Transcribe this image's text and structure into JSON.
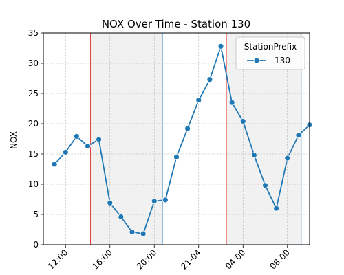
{
  "chart_data": {
    "type": "line",
    "title": "NOX  Over Time - Station 130",
    "xlabel": "",
    "ylabel": "NOX",
    "ylim": [
      0,
      35
    ],
    "xlim": [
      "2024-04-20 10:00",
      "2024-04-21 10:00"
    ],
    "y_ticks": [
      0,
      5,
      10,
      15,
      20,
      25,
      30,
      35
    ],
    "x_ticks": [
      {
        "t": "2024-04-20 12:00",
        "label": "12:00"
      },
      {
        "t": "2024-04-20 16:00",
        "label": "16:00"
      },
      {
        "t": "2024-04-20 20:00",
        "label": "20:00"
      },
      {
        "t": "2024-04-21 00:00",
        "label": "21-04"
      },
      {
        "t": "2024-04-21 04:00",
        "label": "04:00"
      },
      {
        "t": "2024-04-21 08:00",
        "label": "08:00"
      }
    ],
    "grid": true,
    "legend": {
      "title": "StationPrefix",
      "placement": "top-right"
    },
    "shaded_regions": [
      {
        "start": "2024-04-20 14:15",
        "end": "2024-04-20 20:45",
        "color": "#e5e5e5"
      },
      {
        "start": "2024-04-21 02:30",
        "end": "2024-04-21 09:15",
        "color": "#e5e5e5"
      }
    ],
    "series": [
      {
        "name": "130",
        "color": "#1f77b4",
        "points": [
          {
            "x": "2024-04-20 11:00",
            "y": 13.3
          },
          {
            "x": "2024-04-20 12:00",
            "y": 15.3
          },
          {
            "x": "2024-04-20 13:00",
            "y": 17.9
          },
          {
            "x": "2024-04-20 14:00",
            "y": 16.3
          },
          {
            "x": "2024-04-20 15:00",
            "y": 17.4
          },
          {
            "x": "2024-04-20 16:00",
            "y": 6.9
          },
          {
            "x": "2024-04-20 17:00",
            "y": 4.6
          },
          {
            "x": "2024-04-20 18:00",
            "y": 2.1
          },
          {
            "x": "2024-04-20 19:00",
            "y": 1.8
          },
          {
            "x": "2024-04-20 20:00",
            "y": 7.2
          },
          {
            "x": "2024-04-20 21:00",
            "y": 7.4
          },
          {
            "x": "2024-04-20 22:00",
            "y": 14.5
          },
          {
            "x": "2024-04-20 23:00",
            "y": 19.2
          },
          {
            "x": "2024-04-21 00:00",
            "y": 23.9
          },
          {
            "x": "2024-04-21 01:00",
            "y": 27.3
          },
          {
            "x": "2024-04-21 02:00",
            "y": 32.8
          },
          {
            "x": "2024-04-21 03:00",
            "y": 23.5
          },
          {
            "x": "2024-04-21 04:00",
            "y": 20.4
          },
          {
            "x": "2024-04-21 05:00",
            "y": 14.8
          },
          {
            "x": "2024-04-21 06:00",
            "y": 9.8
          },
          {
            "x": "2024-04-21 07:00",
            "y": 6.0
          },
          {
            "x": "2024-04-21 08:00",
            "y": 14.3
          },
          {
            "x": "2024-04-21 09:00",
            "y": 18.1
          },
          {
            "x": "2024-04-21 10:00",
            "y": 19.8
          }
        ]
      }
    ]
  }
}
